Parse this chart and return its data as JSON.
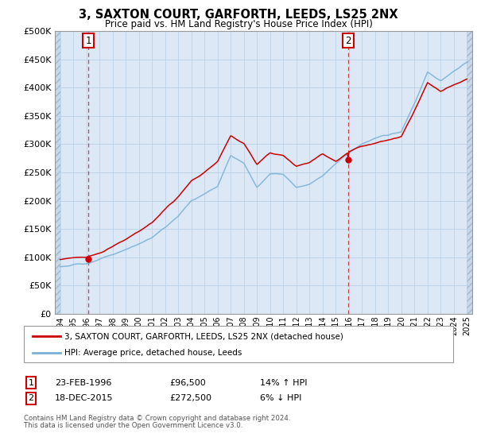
{
  "title": "3, SAXTON COURT, GARFORTH, LEEDS, LS25 2NX",
  "subtitle": "Price paid vs. HM Land Registry's House Price Index (HPI)",
  "ylabel_ticks": [
    "£0",
    "£50K",
    "£100K",
    "£150K",
    "£200K",
    "£250K",
    "£300K",
    "£350K",
    "£400K",
    "£450K",
    "£500K"
  ],
  "ytick_values": [
    0,
    50000,
    100000,
    150000,
    200000,
    250000,
    300000,
    350000,
    400000,
    450000,
    500000
  ],
  "ylim": [
    0,
    500000
  ],
  "xlim_start": 1993.6,
  "xlim_end": 2025.4,
  "point1_x": 1996.15,
  "point1_y": 96500,
  "point2_x": 2015.96,
  "point2_y": 272500,
  "legend_line1": "3, SAXTON COURT, GARFORTH, LEEDS, LS25 2NX (detached house)",
  "legend_line2": "HPI: Average price, detached house, Leeds",
  "footer1": "Contains HM Land Registry data © Crown copyright and database right 2024.",
  "footer2": "This data is licensed under the Open Government Licence v3.0.",
  "price_color": "#cc0000",
  "hpi_color": "#7ab0d4",
  "bg_center_color": "#dce8f5",
  "grid_color": "#b8cfe8",
  "dashed_line_color": "#cc0000",
  "hatch_color": "#c8d8e8",
  "years_hpi": [
    1994,
    1995,
    1996,
    1997,
    1998,
    1999,
    2000,
    2001,
    2002,
    2003,
    2004,
    2005,
    2006,
    2007,
    2008,
    2009,
    2010,
    2011,
    2012,
    2013,
    2014,
    2015,
    2016,
    2017,
    2018,
    2019,
    2020,
    2021,
    2022,
    2023,
    2024,
    2025
  ],
  "hpi_anchor": [
    83000,
    86000,
    89000,
    95000,
    103000,
    112000,
    122000,
    133000,
    150000,
    170000,
    198000,
    210000,
    225000,
    280000,
    265000,
    225000,
    248000,
    248000,
    225000,
    232000,
    248000,
    270000,
    290000,
    305000,
    315000,
    320000,
    325000,
    375000,
    430000,
    415000,
    430000,
    445000
  ],
  "price_anchor": [
    96000,
    98000,
    100000,
    107000,
    118000,
    130000,
    143000,
    157000,
    180000,
    205000,
    235000,
    250000,
    270000,
    315000,
    302000,
    265000,
    285000,
    280000,
    262000,
    270000,
    285000,
    273000,
    290000,
    300000,
    305000,
    310000,
    315000,
    360000,
    410000,
    393000,
    405000,
    415000
  ]
}
